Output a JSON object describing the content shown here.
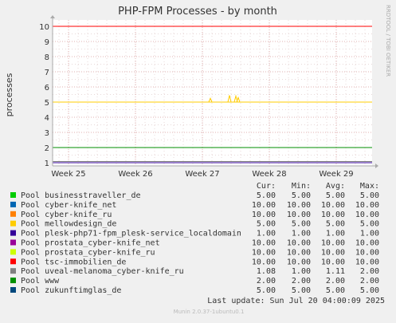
{
  "chart_data": {
    "type": "line",
    "title": "PHP-FPM Processes - by month",
    "ylabel": "processes",
    "side_label": "RRDTOOL / TOBI OETIKER",
    "ylim": [
      1,
      10
    ],
    "yticks": [
      "1",
      "2",
      "3",
      "4",
      "5",
      "6",
      "7",
      "8",
      "9",
      "10"
    ],
    "xticks": [
      "Week 25",
      "Week 26",
      "Week 27",
      "Week 28",
      "Week 29"
    ],
    "grid": true,
    "table_headers": {
      "cur": "Cur:",
      "min": "Min:",
      "avg": "Avg:",
      "max": "Max:"
    },
    "series": [
      {
        "name": "Pool businesstraveller_de",
        "color": "#00cc00",
        "cur": "5.00",
        "min": "5.00",
        "avg": "5.00",
        "max": "5.00"
      },
      {
        "name": "Pool cyber-knife_net",
        "color": "#0066b3",
        "cur": "10.00",
        "min": "10.00",
        "avg": "10.00",
        "max": "10.00"
      },
      {
        "name": "Pool cyber-knife_ru",
        "color": "#ff8000",
        "cur": "10.00",
        "min": "10.00",
        "avg": "10.00",
        "max": "10.00"
      },
      {
        "name": "Pool mellowdesign_de",
        "color": "#ffcc00",
        "cur": "5.00",
        "min": "5.00",
        "avg": "5.00",
        "max": "5.00"
      },
      {
        "name": "Pool plesk-php71-fpm_plesk-service_localdomain",
        "color": "#330099",
        "cur": "1.00",
        "min": "1.00",
        "avg": "1.00",
        "max": "1.00"
      },
      {
        "name": "Pool prostata_cyber-knife_net",
        "color": "#990099",
        "cur": "10.00",
        "min": "10.00",
        "avg": "10.00",
        "max": "10.00"
      },
      {
        "name": "Pool prostata_cyber-knife_ru",
        "color": "#ccff00",
        "cur": "10.00",
        "min": "10.00",
        "avg": "10.00",
        "max": "10.00"
      },
      {
        "name": "Pool tsc-immobilien_de",
        "color": "#ff0000",
        "cur": "10.00",
        "min": "10.00",
        "avg": "10.00",
        "max": "10.00"
      },
      {
        "name": "Pool uveal-melanoma_cyber-knife_ru",
        "color": "#808080",
        "cur": "1.08",
        "min": "1.00",
        "avg": "1.11",
        "max": "2.00"
      },
      {
        "name": "Pool www",
        "color": "#008f00",
        "cur": "2.00",
        "min": "2.00",
        "avg": "2.00",
        "max": "2.00"
      },
      {
        "name": "Pool zukunftimglas_de",
        "color": "#00487d",
        "cur": "5.00",
        "min": "5.00",
        "avg": "5.00",
        "max": "5.00"
      }
    ],
    "last_update": "Last update: Sun Jul 20 04:00:09 2025",
    "footer": "Munin 2.0.37-1ubuntu0.1"
  }
}
